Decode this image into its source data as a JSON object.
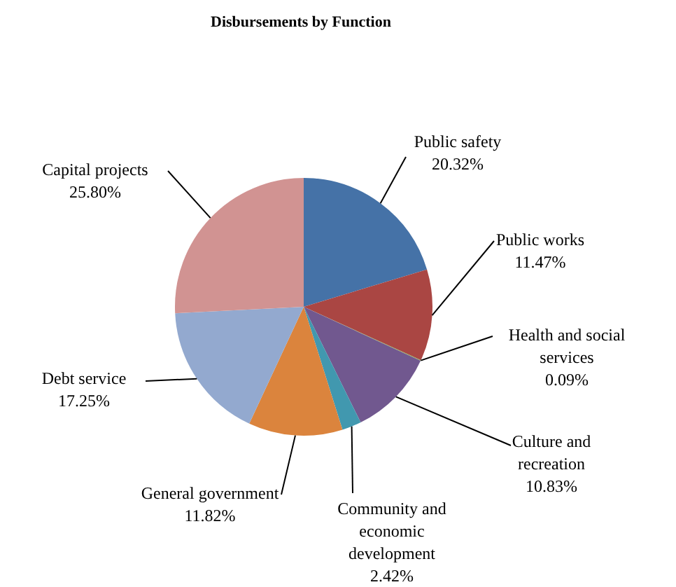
{
  "chart_data": {
    "type": "pie",
    "title": "Disbursements by Function",
    "categories": [
      "Public safety",
      "Public works",
      "Health and social services",
      "Culture and recreation",
      "Community and economic development",
      "General government",
      "Debt service",
      "Capital projects"
    ],
    "values": [
      20.32,
      11.47,
      0.09,
      10.83,
      2.42,
      11.82,
      17.25,
      25.8
    ],
    "value_labels": [
      "20.32%",
      "11.47%",
      "0.09%",
      "10.83%",
      "2.42%",
      "11.82%",
      "17.25%",
      "25.80%"
    ],
    "colors": [
      "#4572a7",
      "#aa4643",
      "#89a54e",
      "#71588f",
      "#4198af",
      "#db843d",
      "#93a9cf",
      "#d19392"
    ],
    "legend": false
  }
}
